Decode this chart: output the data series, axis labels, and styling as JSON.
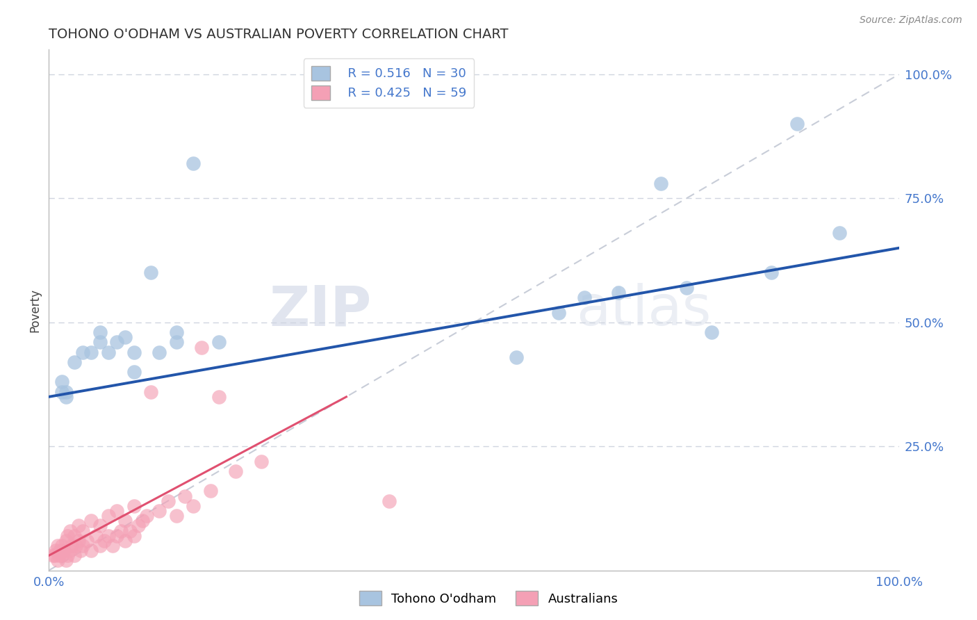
{
  "title": "TOHONO O'ODHAM VS AUSTRALIAN POVERTY CORRELATION CHART",
  "source": "Source: ZipAtlas.com",
  "ylabel": "Poverty",
  "xlim": [
    0.0,
    1.0
  ],
  "ylim": [
    0.0,
    1.05
  ],
  "legend_r1": "R = 0.516",
  "legend_n1": "N = 30",
  "legend_r2": "R = 0.425",
  "legend_n2": "N = 59",
  "label1": "Tohono O'odham",
  "label2": "Australians",
  "color1": "#a8c4e0",
  "color2": "#f4a0b5",
  "line_color1": "#2255aa",
  "line_color2": "#e05070",
  "ref_line_color": "#c8cdd8",
  "watermark_zip": "ZIP",
  "watermark_atlas": "atlas",
  "background_color": "#ffffff",
  "grid_color": "#d0d5e0",
  "tick_color": "#4477cc",
  "title_color": "#333333",
  "tohono_x": [
    0.015,
    0.015,
    0.02,
    0.02,
    0.03,
    0.04,
    0.05,
    0.06,
    0.06,
    0.07,
    0.08,
    0.09,
    0.1,
    0.1,
    0.12,
    0.13,
    0.15,
    0.15,
    0.17,
    0.2,
    0.55,
    0.6,
    0.63,
    0.67,
    0.72,
    0.75,
    0.78,
    0.85,
    0.88,
    0.93
  ],
  "tohono_y": [
    0.36,
    0.38,
    0.35,
    0.36,
    0.42,
    0.44,
    0.44,
    0.46,
    0.48,
    0.44,
    0.46,
    0.47,
    0.4,
    0.44,
    0.6,
    0.44,
    0.46,
    0.48,
    0.82,
    0.46,
    0.43,
    0.52,
    0.55,
    0.56,
    0.78,
    0.57,
    0.48,
    0.6,
    0.9,
    0.68
  ],
  "aus_x": [
    0.005,
    0.007,
    0.008,
    0.01,
    0.01,
    0.012,
    0.013,
    0.015,
    0.015,
    0.017,
    0.018,
    0.02,
    0.02,
    0.022,
    0.022,
    0.025,
    0.025,
    0.027,
    0.03,
    0.03,
    0.032,
    0.035,
    0.035,
    0.037,
    0.04,
    0.04,
    0.045,
    0.05,
    0.05,
    0.055,
    0.06,
    0.06,
    0.065,
    0.07,
    0.07,
    0.075,
    0.08,
    0.08,
    0.085,
    0.09,
    0.09,
    0.095,
    0.1,
    0.1,
    0.105,
    0.11,
    0.115,
    0.12,
    0.13,
    0.14,
    0.15,
    0.16,
    0.17,
    0.18,
    0.19,
    0.2,
    0.22,
    0.25,
    0.4
  ],
  "aus_y": [
    0.03,
    0.03,
    0.04,
    0.02,
    0.05,
    0.03,
    0.04,
    0.03,
    0.05,
    0.04,
    0.04,
    0.02,
    0.06,
    0.03,
    0.07,
    0.04,
    0.08,
    0.05,
    0.03,
    0.07,
    0.05,
    0.06,
    0.09,
    0.04,
    0.05,
    0.08,
    0.06,
    0.04,
    0.1,
    0.07,
    0.05,
    0.09,
    0.06,
    0.07,
    0.11,
    0.05,
    0.07,
    0.12,
    0.08,
    0.06,
    0.1,
    0.08,
    0.07,
    0.13,
    0.09,
    0.1,
    0.11,
    0.36,
    0.12,
    0.14,
    0.11,
    0.15,
    0.13,
    0.45,
    0.16,
    0.35,
    0.2,
    0.22,
    0.14
  ],
  "blue_line_x0": 0.0,
  "blue_line_y0": 0.35,
  "blue_line_x1": 1.0,
  "blue_line_y1": 0.65,
  "pink_line_x0": 0.0,
  "pink_line_y0": 0.03,
  "pink_line_x1": 0.35,
  "pink_line_y1": 0.35
}
